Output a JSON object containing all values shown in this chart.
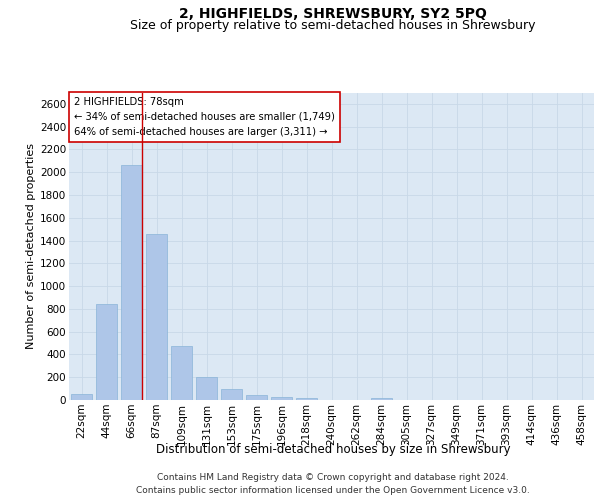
{
  "title": "2, HIGHFIELDS, SHREWSBURY, SY2 5PQ",
  "subtitle": "Size of property relative to semi-detached houses in Shrewsbury",
  "xlabel": "Distribution of semi-detached houses by size in Shrewsbury",
  "ylabel": "Number of semi-detached properties",
  "categories": [
    "22sqm",
    "44sqm",
    "66sqm",
    "87sqm",
    "109sqm",
    "131sqm",
    "153sqm",
    "175sqm",
    "196sqm",
    "218sqm",
    "240sqm",
    "262sqm",
    "284sqm",
    "305sqm",
    "327sqm",
    "349sqm",
    "371sqm",
    "393sqm",
    "414sqm",
    "436sqm",
    "458sqm"
  ],
  "values": [
    50,
    840,
    2060,
    1455,
    470,
    200,
    95,
    45,
    30,
    20,
    0,
    0,
    20,
    0,
    0,
    0,
    0,
    0,
    0,
    0,
    0
  ],
  "bar_color": "#aec6e8",
  "bar_edge_color": "#8ab4d8",
  "annotation_text": "2 HIGHFIELDS: 78sqm\n← 34% of semi-detached houses are smaller (1,749)\n64% of semi-detached houses are larger (3,311) →",
  "annotation_box_color": "#ffffff",
  "annotation_box_edge": "#cc0000",
  "vline_color": "#cc0000",
  "ylim": [
    0,
    2700
  ],
  "yticks": [
    0,
    200,
    400,
    600,
    800,
    1000,
    1200,
    1400,
    1600,
    1800,
    2000,
    2200,
    2400,
    2600
  ],
  "grid_color": "#c8d8e8",
  "bg_color": "#dce8f4",
  "footer": "Contains HM Land Registry data © Crown copyright and database right 2024.\nContains public sector information licensed under the Open Government Licence v3.0.",
  "title_fontsize": 10,
  "subtitle_fontsize": 9,
  "xlabel_fontsize": 8.5,
  "ylabel_fontsize": 8,
  "tick_fontsize": 7.5,
  "footer_fontsize": 6.5,
  "vline_x": 2.43
}
